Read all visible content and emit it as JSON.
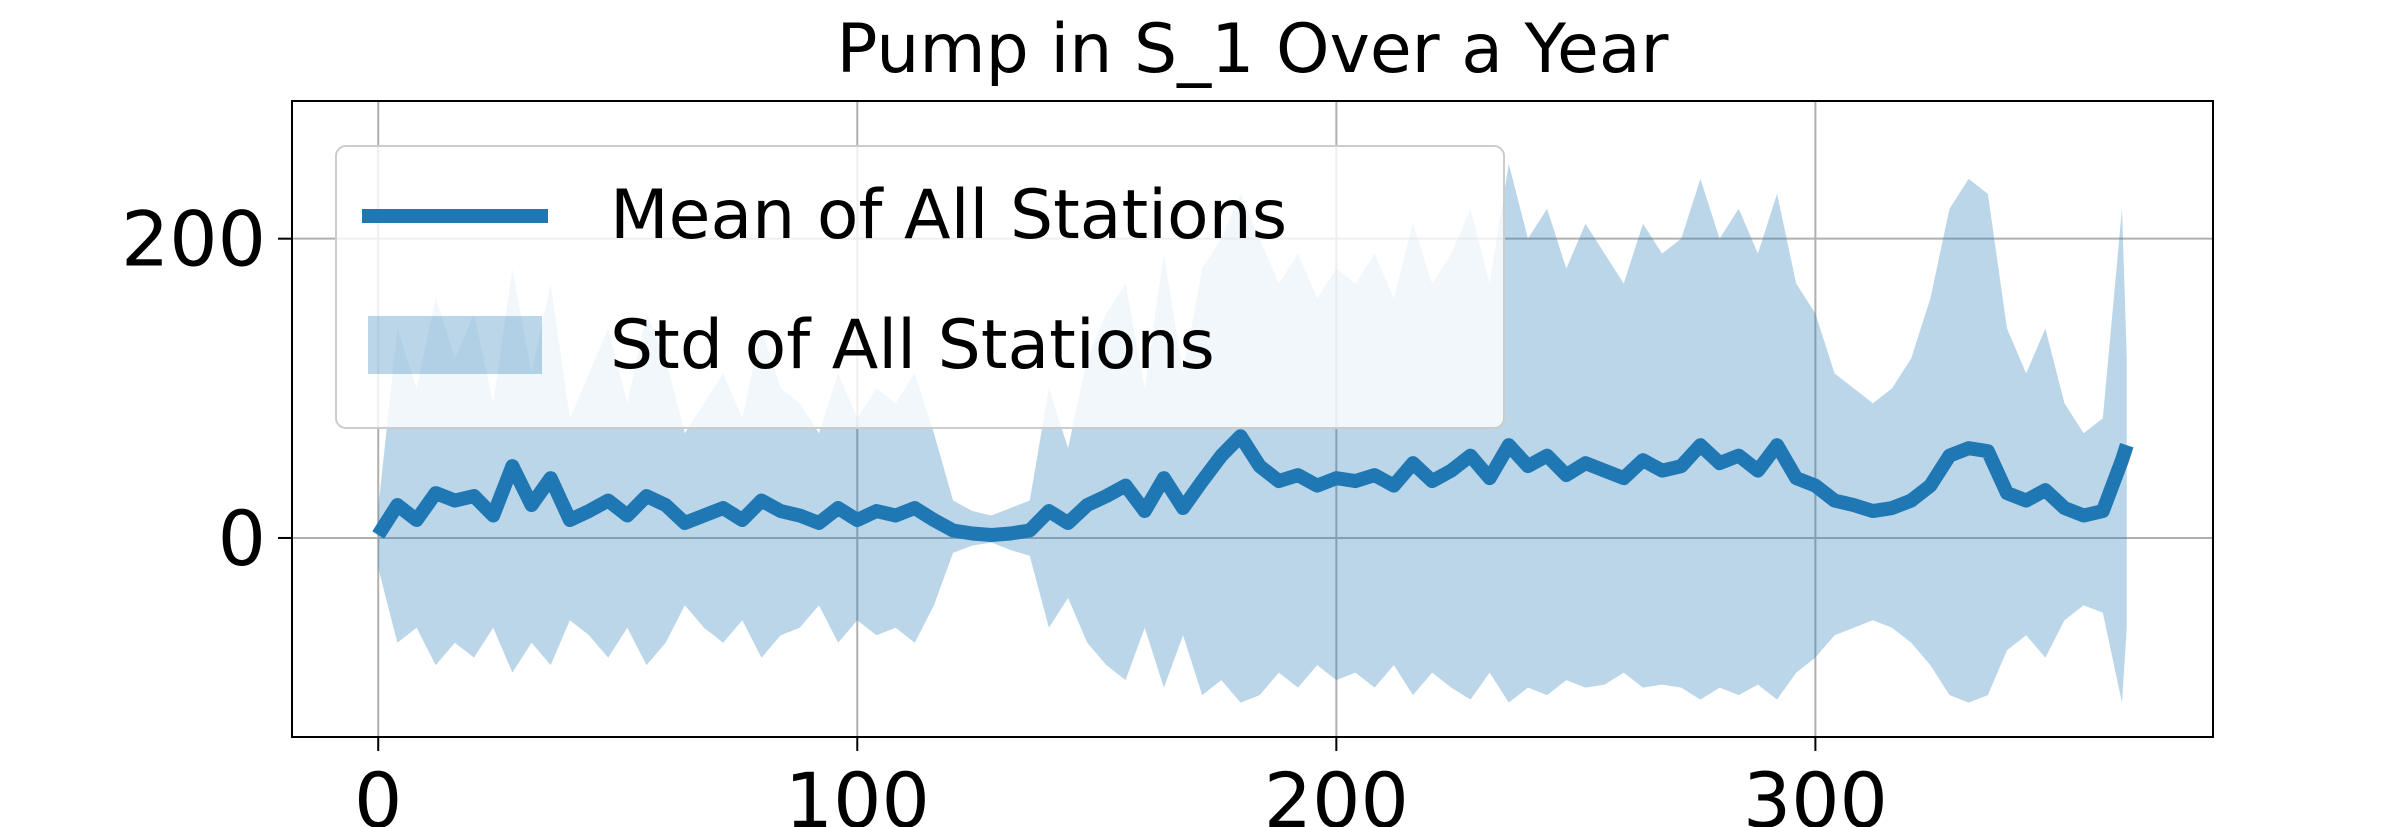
{
  "chart_data": {
    "type": "line",
    "title": "Pump in S_1 Over a Year",
    "xlabel": "",
    "ylabel": "",
    "xlim": [
      -18,
      383
    ],
    "ylim": [
      -133,
      292
    ],
    "xticks": [
      0,
      100,
      200,
      300
    ],
    "xtick_labels": [
      "0",
      "100",
      "200",
      "300"
    ],
    "yticks": [
      0,
      200
    ],
    "ytick_labels": [
      "0",
      "200"
    ],
    "grid": true,
    "legend": {
      "placement": "upper-left",
      "entries": [
        "Mean of All Stations",
        "Std of All Stations"
      ]
    },
    "series": [
      {
        "name": "Mean of All Stations",
        "kind": "line",
        "color": "#1f77b4",
        "x": [
          0,
          4,
          8,
          12,
          16,
          20,
          24,
          28,
          32,
          36,
          40,
          44,
          48,
          52,
          56,
          60,
          64,
          68,
          72,
          76,
          80,
          84,
          88,
          92,
          96,
          100,
          104,
          108,
          112,
          116,
          120,
          124,
          128,
          132,
          136,
          140,
          144,
          148,
          152,
          156,
          160,
          164,
          168,
          172,
          176,
          180,
          184,
          188,
          192,
          196,
          200,
          204,
          208,
          212,
          216,
          220,
          224,
          228,
          232,
          236,
          240,
          244,
          248,
          252,
          256,
          260,
          264,
          268,
          272,
          276,
          280,
          284,
          288,
          292,
          296,
          300,
          304,
          308,
          312,
          316,
          320,
          324,
          328,
          332,
          336,
          340,
          344,
          348,
          352,
          356,
          360,
          364,
          365
        ],
        "values": [
          2,
          22,
          12,
          30,
          25,
          28,
          15,
          48,
          22,
          40,
          12,
          18,
          25,
          15,
          28,
          22,
          10,
          15,
          20,
          12,
          25,
          18,
          15,
          10,
          20,
          12,
          18,
          15,
          20,
          12,
          5,
          3,
          2,
          3,
          5,
          18,
          10,
          22,
          28,
          35,
          18,
          40,
          20,
          38,
          55,
          68,
          48,
          38,
          42,
          35,
          40,
          38,
          42,
          35,
          50,
          38,
          45,
          55,
          40,
          62,
          48,
          55,
          42,
          50,
          45,
          40,
          52,
          45,
          48,
          62,
          50,
          55,
          45,
          62,
          40,
          35,
          25,
          22,
          18,
          20,
          25,
          35,
          55,
          60,
          58,
          30,
          25,
          32,
          20,
          15,
          18,
          52,
          62
        ]
      },
      {
        "name": "Std of All Stations",
        "kind": "band",
        "color": "#1f77b4",
        "opacity": 0.3,
        "x": [
          0,
          4,
          8,
          12,
          16,
          20,
          24,
          28,
          32,
          36,
          40,
          44,
          48,
          52,
          56,
          60,
          64,
          68,
          72,
          76,
          80,
          84,
          88,
          92,
          96,
          100,
          104,
          108,
          112,
          116,
          120,
          124,
          128,
          132,
          136,
          140,
          144,
          148,
          152,
          156,
          160,
          164,
          168,
          172,
          176,
          180,
          184,
          188,
          192,
          196,
          200,
          204,
          208,
          212,
          216,
          220,
          224,
          228,
          232,
          236,
          240,
          244,
          248,
          252,
          256,
          260,
          264,
          268,
          272,
          276,
          280,
          284,
          288,
          292,
          296,
          300,
          304,
          308,
          312,
          316,
          320,
          324,
          328,
          332,
          336,
          340,
          344,
          348,
          352,
          356,
          360,
          364,
          365
        ],
        "upper": [
          20,
          140,
          100,
          160,
          120,
          150,
          90,
          180,
          110,
          170,
          80,
          110,
          140,
          90,
          150,
          120,
          70,
          90,
          110,
          80,
          140,
          100,
          90,
          70,
          110,
          80,
          100,
          90,
          110,
          70,
          25,
          18,
          15,
          20,
          25,
          100,
          60,
          120,
          150,
          170,
          100,
          190,
          110,
          180,
          200,
          230,
          200,
          170,
          190,
          160,
          180,
          170,
          190,
          160,
          210,
          170,
          190,
          220,
          170,
          250,
          200,
          220,
          180,
          210,
          190,
          170,
          210,
          190,
          200,
          240,
          200,
          220,
          190,
          230,
          170,
          150,
          110,
          100,
          90,
          100,
          120,
          160,
          220,
          240,
          230,
          140,
          110,
          140,
          90,
          70,
          80,
          220,
          120
        ],
        "lower": [
          -20,
          -70,
          -60,
          -85,
          -70,
          -80,
          -60,
          -90,
          -70,
          -85,
          -55,
          -65,
          -80,
          -60,
          -85,
          -70,
          -45,
          -60,
          -70,
          -55,
          -80,
          -65,
          -60,
          -45,
          -70,
          -55,
          -65,
          -60,
          -70,
          -45,
          -10,
          -5,
          -3,
          -8,
          -12,
          -60,
          -40,
          -70,
          -85,
          -95,
          -60,
          -100,
          -65,
          -105,
          -95,
          -110,
          -105,
          -90,
          -100,
          -85,
          -95,
          -90,
          -100,
          -85,
          -105,
          -90,
          -100,
          -108,
          -90,
          -110,
          -100,
          -105,
          -95,
          -100,
          -98,
          -90,
          -100,
          -98,
          -100,
          -108,
          -100,
          -105,
          -98,
          -108,
          -90,
          -80,
          -65,
          -60,
          -55,
          -60,
          -70,
          -85,
          -105,
          -110,
          -105,
          -75,
          -65,
          -80,
          -55,
          -45,
          -50,
          -110,
          -60
        ]
      }
    ]
  }
}
